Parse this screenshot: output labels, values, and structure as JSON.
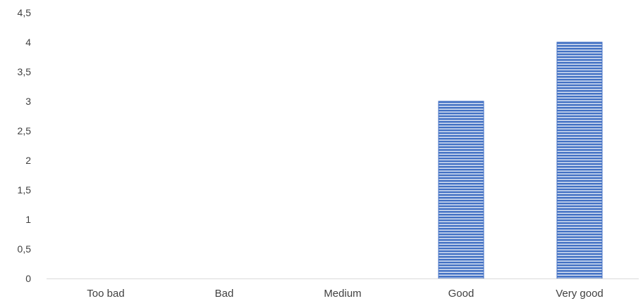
{
  "chart_data": {
    "type": "bar",
    "categories": [
      "Too bad",
      "Bad",
      "Medium",
      "Good",
      "Very good"
    ],
    "values": [
      0,
      0,
      0,
      3,
      4
    ],
    "y_tick_labels": [
      "0",
      "0,5",
      "1",
      "1,5",
      "2",
      "2,5",
      "3",
      "3,5",
      "4",
      "4,5"
    ],
    "ylim": [
      0,
      4.5
    ],
    "title": "",
    "xlabel": "",
    "ylabel": "",
    "grid": false,
    "legend": "none",
    "bar_color": "#4472C4",
    "bar_stripe_color": "#ffffff"
  }
}
